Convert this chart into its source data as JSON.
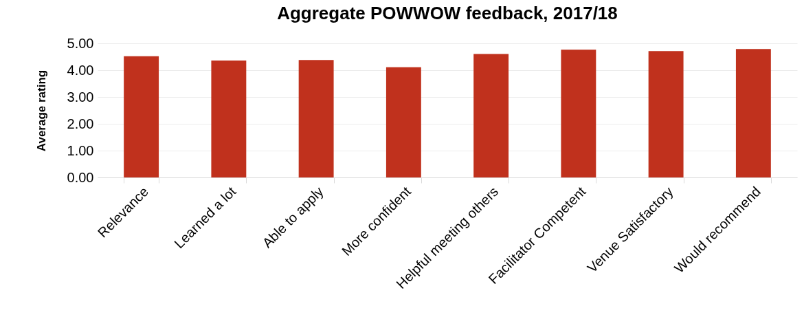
{
  "chart_data": {
    "type": "bar",
    "title": "Aggregate POWWOW feedback, 2017/18",
    "ylabel": "Average rating",
    "categories": [
      "Relevance",
      "Learned a lot",
      "Able to apply",
      "More confident",
      "Helpful meeting others",
      "Facilitator Competent",
      "Venue Satisfactory",
      "Would recommend"
    ],
    "values": [
      4.52,
      4.36,
      4.38,
      4.11,
      4.6,
      4.76,
      4.71,
      4.79
    ],
    "color": "#c0311d",
    "ylim": [
      0,
      5
    ],
    "yticks": [
      {
        "value": 0,
        "label": "0.00"
      },
      {
        "value": 1,
        "label": "1.00"
      },
      {
        "value": 2,
        "label": "2.00"
      },
      {
        "value": 3,
        "label": "3.00"
      },
      {
        "value": 4,
        "label": "4.00"
      },
      {
        "value": 5,
        "label": "5.00"
      }
    ],
    "grid": "y"
  }
}
